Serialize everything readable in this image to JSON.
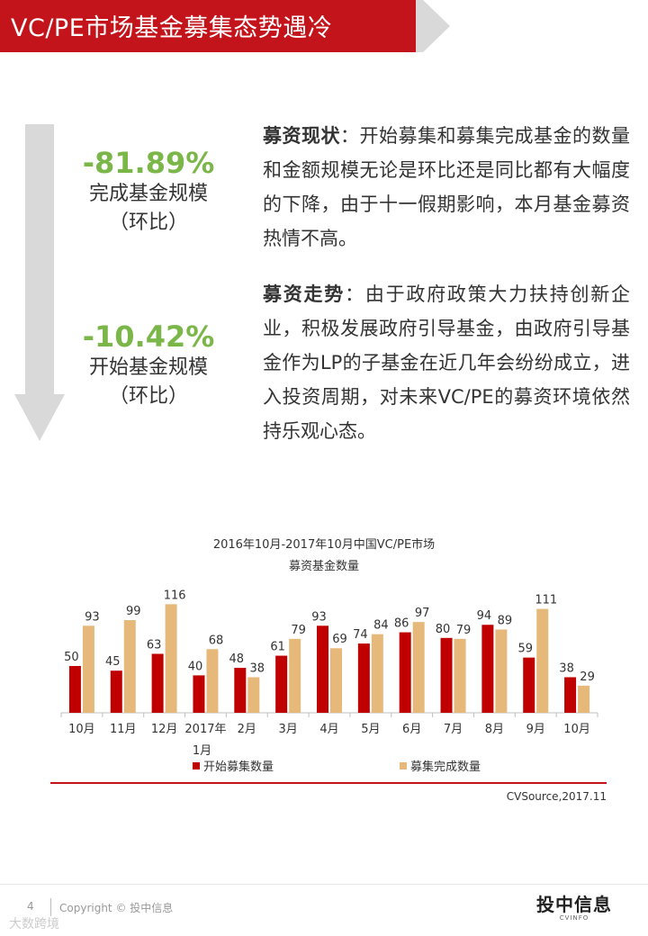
{
  "header": {
    "title": "VC/PE市场基金募集态势遇冷",
    "bar_color": "#c4141b",
    "arrow_color": "#d9d9d9"
  },
  "stats": [
    {
      "value": "-81.89%",
      "label_line1": "完成基金规模",
      "label_line2": "（环比）"
    },
    {
      "value": "-10.42%",
      "label_line1": "开始基金规模",
      "label_line2": "（环比）"
    }
  ],
  "stat_color": "#7ab648",
  "paragraphs": [
    {
      "heading": "募资现状",
      "text": "：开始募集和募集完成基金的数量和金额规模无论是环比还是同比都有大幅度的下降，由于十一假期影响，本月基金募资热情不高。"
    },
    {
      "heading": "募资走势",
      "text": "：由于政府政策大力扶持创新企业，积极发展政府引导基金，由政府引导基金作为LP的子基金在近几年会纷纷成立，进入投资周期，对未来VC/PE的募资环境依然持乐观心态。"
    }
  ],
  "chart_title_line1": "2016年10月-2017年10月中国VC/PE市场",
  "chart_title_line2": "募资基金数量",
  "chart_data": {
    "type": "bar",
    "categories": [
      "10月",
      "11月",
      "12月",
      "2017年1月",
      "2月",
      "3月",
      "4月",
      "5月",
      "6月",
      "7月",
      "8月",
      "9月",
      "10月"
    ],
    "series": [
      {
        "name": "开始募集数量",
        "color": "#c00000",
        "values": [
          50,
          45,
          63,
          40,
          48,
          61,
          93,
          74,
          86,
          80,
          94,
          59,
          38
        ]
      },
      {
        "name": "募集完成数量",
        "color": "#e6b97a",
        "values": [
          93,
          99,
          116,
          68,
          38,
          79,
          69,
          84,
          97,
          79,
          89,
          111,
          29
        ]
      }
    ],
    "ylim": [
      0,
      125
    ],
    "grid": false,
    "legend_position": "bottom"
  },
  "source": "CVSource,2017.11",
  "footer": {
    "page_number": "4",
    "copyright": "Copyright © 投中信息",
    "logo_main": "投中信息",
    "logo_sub": "CVINFO",
    "watermark": "大数跨境"
  }
}
